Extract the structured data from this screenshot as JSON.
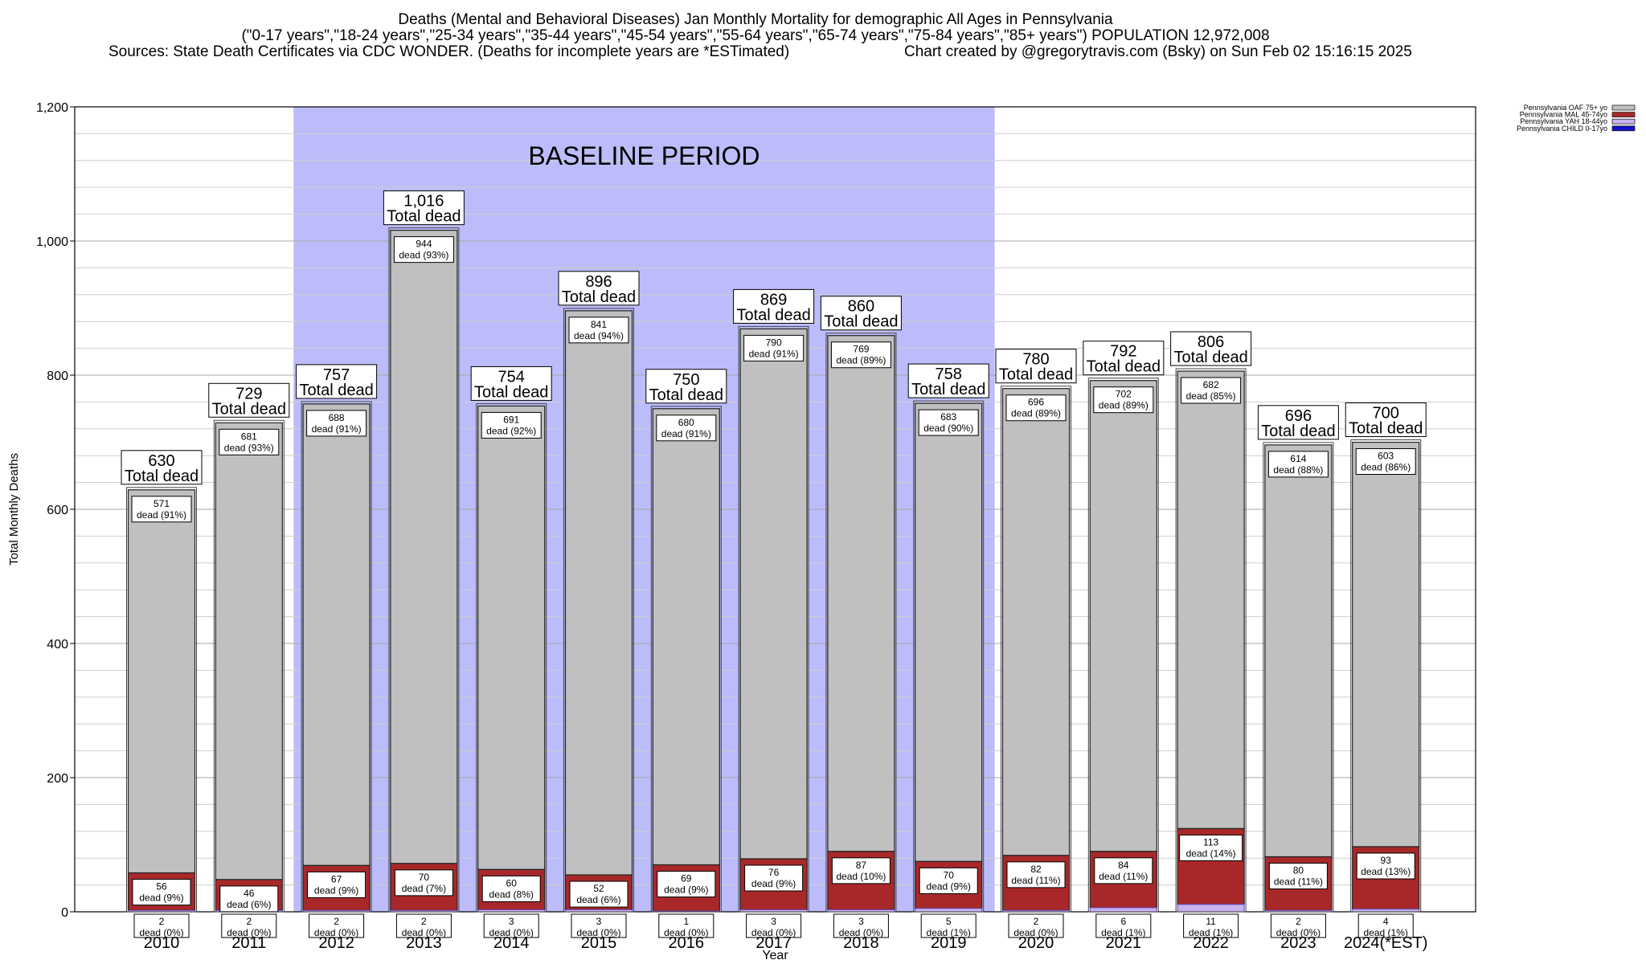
{
  "chart_data": {
    "type": "bar",
    "stacked": true,
    "title": "Deaths (Mental and Behavioral Diseases) Jan Monthly Mortality for demographic All Ages in Pennsylvania",
    "subtitle": "(\"0-17 years\",\"18-24 years\",\"25-34 years\",\"35-44 years\",\"45-54 years\",\"55-64 years\",\"65-74 years\",\"75-84 years\",\"85+ years\") POPULATION 12,972,008",
    "sources": "Sources: State Death Certificates via CDC WONDER. (Deaths for incomplete years are *ESTimated)",
    "credit": "Chart created by @gregorytravis.com (Bsky) on Sun Feb 02 15:16:15 2025",
    "xlabel": "Year",
    "ylabel": "Total Monthly Deaths",
    "ylim": [
      0,
      1200
    ],
    "yticks": [
      0,
      200,
      400,
      600,
      800,
      1000,
      1200
    ],
    "ytick_labels": [
      "0",
      "200",
      "400",
      "600",
      "800",
      "1,000",
      "1,200"
    ],
    "grid": true,
    "legend_position": "top-right",
    "baseline_label": "BASELINE PERIOD",
    "baseline_range": [
      "2012",
      "2019"
    ],
    "total_suffix": "Total dead",
    "categories": [
      "2010",
      "2011",
      "2012",
      "2013",
      "2014",
      "2015",
      "2016",
      "2017",
      "2018",
      "2019",
      "2020",
      "2021",
      "2022",
      "2023",
      "2024(*EST)"
    ],
    "totals": [
      630,
      729,
      757,
      1016,
      754,
      896,
      750,
      869,
      860,
      758,
      780,
      792,
      806,
      696,
      700
    ],
    "total_labels": [
      "630",
      "729",
      "757",
      "1,016",
      "754",
      "896",
      "750",
      "869",
      "860",
      "758",
      "780",
      "792",
      "806",
      "696",
      "700"
    ],
    "series": [
      {
        "name": "Pennsylvania CHILD 0-17yo",
        "color": "#1010c8",
        "values": [
          0,
          0,
          0,
          0,
          0,
          0,
          0,
          0,
          0,
          0,
          0,
          0,
          0,
          0,
          0
        ]
      },
      {
        "name": "Pennsylvania YAH 18-44yo",
        "color": "#c9b2f0",
        "values": [
          2,
          2,
          2,
          2,
          3,
          3,
          1,
          3,
          3,
          5,
          2,
          6,
          11,
          2,
          4
        ],
        "labels": [
          "2\ndead (0%)",
          "2\ndead (0%)",
          "2\ndead (0%)",
          "2\ndead (0%)",
          "3\ndead (0%)",
          "3\ndead (0%)",
          "1\ndead (0%)",
          "3\ndead (0%)",
          "3\ndead (0%)",
          "5\ndead (1%)",
          "2\ndead (0%)",
          "6\ndead (1%)",
          "11\ndead (1%)",
          "2\ndead (0%)",
          "4\ndead (1%)"
        ]
      },
      {
        "name": "Pennsylvania MAL 45-74yo",
        "color": "#a8282a",
        "values": [
          56,
          46,
          67,
          70,
          60,
          52,
          69,
          76,
          87,
          70,
          82,
          84,
          113,
          80,
          93
        ],
        "labels": [
          "56\ndead (9%)",
          "46\ndead (6%)",
          "67\ndead (9%)",
          "70\ndead (7%)",
          "60\ndead (8%)",
          "52\ndead (6%)",
          "69\ndead (9%)",
          "76\ndead (9%)",
          "87\ndead (10%)",
          "70\ndead (9%)",
          "82\ndead (11%)",
          "84\ndead (11%)",
          "113\ndead (14%)",
          "80\ndead (11%)",
          "93\ndead (13%)"
        ]
      },
      {
        "name": "Pennsylvania OAF 75+ yo",
        "color": "#c0c0c0",
        "values": [
          571,
          681,
          688,
          944,
          691,
          841,
          680,
          790,
          769,
          683,
          696,
          702,
          682,
          614,
          603
        ],
        "labels": [
          "571\ndead (91%)",
          "681\ndead (93%)",
          "688\ndead (91%)",
          "944\ndead (93%)",
          "691\ndead (92%)",
          "841\ndead (94%)",
          "680\ndead (91%)",
          "790\ndead (91%)",
          "769\ndead (89%)",
          "683\ndead (90%)",
          "696\ndead (89%)",
          "702\ndead (89%)",
          "682\ndead (85%)",
          "614\ndead (88%)",
          "603\ndead (86%)"
        ]
      }
    ],
    "legend_order": [
      "Pennsylvania OAF 75+ yo",
      "Pennsylvania MAL 45-74yo",
      "Pennsylvania YAH 18-44yo",
      "Pennsylvania CHILD 0-17yo"
    ]
  }
}
